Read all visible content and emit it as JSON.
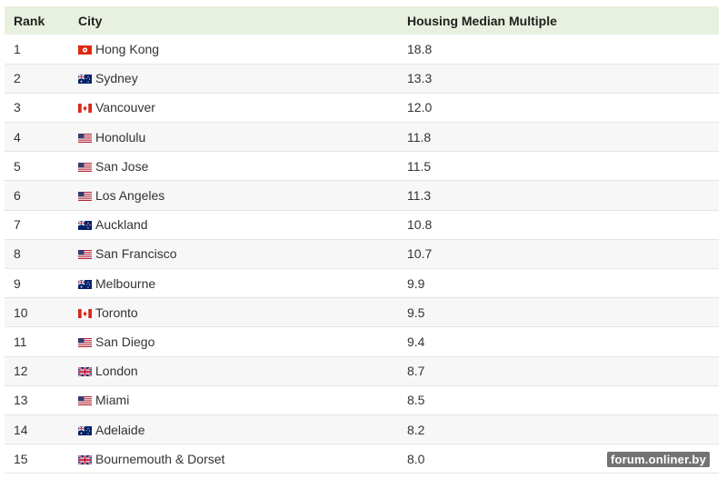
{
  "table": {
    "headers": {
      "rank": "Rank",
      "city": "City",
      "value": "Housing Median Multiple"
    },
    "rows": [
      {
        "rank": "1",
        "flag": "hong-kong-flag-icon",
        "city": "Hong Kong",
        "value": "18.8"
      },
      {
        "rank": "2",
        "flag": "australia-flag-icon",
        "city": "Sydney",
        "value": "13.3"
      },
      {
        "rank": "3",
        "flag": "canada-flag-icon",
        "city": "Vancouver",
        "value": "12.0"
      },
      {
        "rank": "4",
        "flag": "usa-flag-icon",
        "city": "Honolulu",
        "value": "11.8"
      },
      {
        "rank": "5",
        "flag": "usa-flag-icon",
        "city": "San Jose",
        "value": "11.5"
      },
      {
        "rank": "6",
        "flag": "usa-flag-icon",
        "city": "Los Angeles",
        "value": "11.3"
      },
      {
        "rank": "7",
        "flag": "new-zealand-flag-icon",
        "city": "Auckland",
        "value": "10.8"
      },
      {
        "rank": "8",
        "flag": "usa-flag-icon",
        "city": "San Francisco",
        "value": "10.7"
      },
      {
        "rank": "9",
        "flag": "australia-flag-icon",
        "city": "Melbourne",
        "value": "9.9"
      },
      {
        "rank": "10",
        "flag": "canada-flag-icon",
        "city": "Toronto",
        "value": "9.5"
      },
      {
        "rank": "11",
        "flag": "usa-flag-icon",
        "city": "San Diego",
        "value": "9.4"
      },
      {
        "rank": "12",
        "flag": "uk-flag-icon",
        "city": "London",
        "value": "8.7"
      },
      {
        "rank": "13",
        "flag": "usa-flag-icon",
        "city": "Miami",
        "value": "8.5"
      },
      {
        "rank": "14",
        "flag": "australia-flag-icon",
        "city": "Adelaide",
        "value": "8.2"
      },
      {
        "rank": "15",
        "flag": "uk-flag-icon",
        "city": "Bournemouth & Dorset",
        "value": "8.0"
      }
    ]
  },
  "watermark": "forum.onliner.by",
  "colors": {
    "header_bg": "#e8f1df",
    "alt_row_bg": "#f7f7f7"
  }
}
